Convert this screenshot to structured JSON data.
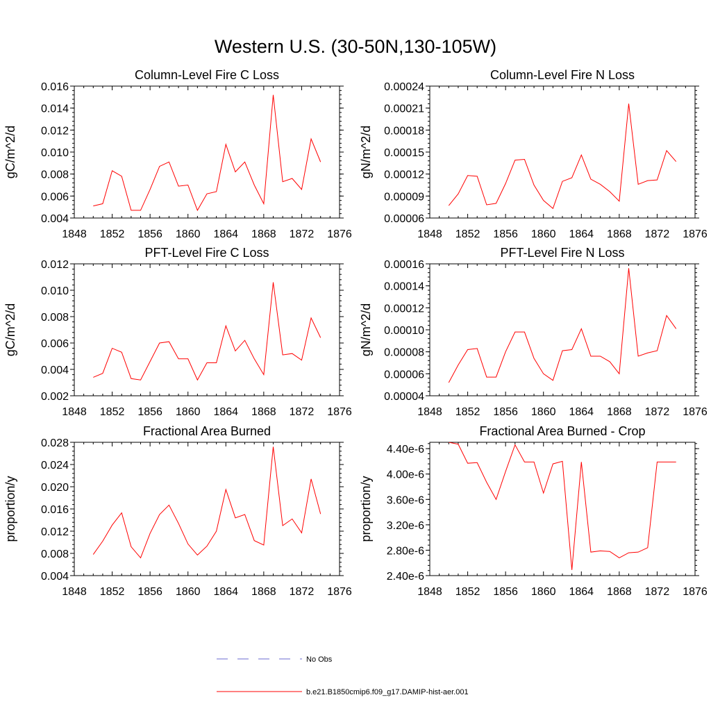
{
  "title": "Western U.S. (30-50N,130-105W)",
  "colors": {
    "model": "#ff0000",
    "obs": "#6a6ad0",
    "axis": "#000000"
  },
  "legend": [
    {
      "label": "No Obs",
      "style": "dashed",
      "color": "#6a6ad0"
    },
    {
      "label": "b.e21.B1850cmip6.f09_g17.DAMIP-hist-aer.001",
      "style": "solid",
      "color": "#ff0000"
    }
  ],
  "chart_data": [
    {
      "type": "line",
      "title": "Column-Level Fire C Loss",
      "ylabel": "gC/m^2/d",
      "xlim": [
        1848,
        1876
      ],
      "ylim": [
        0.004,
        0.016
      ],
      "xticks": [
        "1848",
        "1852",
        "1856",
        "1860",
        "1864",
        "1868",
        "1872",
        "1876"
      ],
      "yticks": [
        "0.004",
        "0.006",
        "0.008",
        "0.010",
        "0.012",
        "0.014",
        "0.016"
      ],
      "x": [
        1850,
        1851,
        1852,
        1853,
        1854,
        1855,
        1856,
        1857,
        1858,
        1859,
        1860,
        1861,
        1862,
        1863,
        1864,
        1865,
        1866,
        1867,
        1868,
        1869,
        1870,
        1871,
        1872,
        1873,
        1874
      ],
      "series": [
        {
          "values": [
            0.0051,
            0.0053,
            0.0083,
            0.0078,
            0.0047,
            0.0047,
            0.0066,
            0.0087,
            0.0091,
            0.0069,
            0.007,
            0.0047,
            0.0062,
            0.0064,
            0.0107,
            0.0082,
            0.0091,
            0.007,
            0.0053,
            0.0152,
            0.0073,
            0.0076,
            0.0066,
            0.0112,
            0.0091
          ]
        }
      ]
    },
    {
      "type": "line",
      "title": "Column-Level Fire N Loss",
      "ylabel": "gN/m^2/d",
      "xlim": [
        1848,
        1876
      ],
      "ylim": [
        6e-05,
        0.00024
      ],
      "xticks": [
        "1848",
        "1852",
        "1856",
        "1860",
        "1864",
        "1868",
        "1872",
        "1876"
      ],
      "yticks": [
        "0.00006",
        "0.00009",
        "0.00012",
        "0.00015",
        "0.00018",
        "0.00021",
        "0.00024"
      ],
      "x": [
        1850,
        1851,
        1852,
        1853,
        1854,
        1855,
        1856,
        1857,
        1858,
        1859,
        1860,
        1861,
        1862,
        1863,
        1864,
        1865,
        1866,
        1867,
        1868,
        1869,
        1870,
        1871,
        1872,
        1873,
        1874
      ],
      "series": [
        {
          "values": [
            7.7e-05,
            9.3e-05,
            0.000118,
            0.000117,
            7.8e-05,
            8e-05,
            0.000107,
            0.000139,
            0.00014,
            0.000105,
            8.4e-05,
            7.3e-05,
            0.00011,
            0.000115,
            0.000146,
            0.000113,
            0.000106,
            9.6e-05,
            8.3e-05,
            0.000216,
            0.000106,
            0.000111,
            0.000112,
            0.000152,
            0.000137
          ]
        }
      ]
    },
    {
      "type": "line",
      "title": "PFT-Level Fire C Loss",
      "ylabel": "gC/m^2/d",
      "xlim": [
        1848,
        1876
      ],
      "ylim": [
        0.002,
        0.012
      ],
      "xticks": [
        "1848",
        "1852",
        "1856",
        "1860",
        "1864",
        "1868",
        "1872",
        "1876"
      ],
      "yticks": [
        "0.002",
        "0.004",
        "0.006",
        "0.008",
        "0.010",
        "0.012"
      ],
      "x": [
        1850,
        1851,
        1852,
        1853,
        1854,
        1855,
        1856,
        1857,
        1858,
        1859,
        1860,
        1861,
        1862,
        1863,
        1864,
        1865,
        1866,
        1867,
        1868,
        1869,
        1870,
        1871,
        1872,
        1873,
        1874
      ],
      "series": [
        {
          "values": [
            0.0034,
            0.0037,
            0.0056,
            0.0053,
            0.0033,
            0.0032,
            0.0046,
            0.006,
            0.0061,
            0.0048,
            0.0048,
            0.0032,
            0.0045,
            0.0045,
            0.0073,
            0.0054,
            0.0062,
            0.0048,
            0.0036,
            0.0106,
            0.0051,
            0.0052,
            0.0047,
            0.0079,
            0.0064
          ]
        }
      ]
    },
    {
      "type": "line",
      "title": "PFT-Level Fire N Loss",
      "ylabel": "gN/m^2/d",
      "xlim": [
        1848,
        1876
      ],
      "ylim": [
        4e-05,
        0.00016
      ],
      "xticks": [
        "1848",
        "1852",
        "1856",
        "1860",
        "1864",
        "1868",
        "1872",
        "1876"
      ],
      "yticks": [
        "0.00004",
        "0.00006",
        "0.00008",
        "0.00010",
        "0.00012",
        "0.00014",
        "0.00016"
      ],
      "x": [
        1850,
        1851,
        1852,
        1853,
        1854,
        1855,
        1856,
        1857,
        1858,
        1859,
        1860,
        1861,
        1862,
        1863,
        1864,
        1865,
        1866,
        1867,
        1868,
        1869,
        1870,
        1871,
        1872,
        1873,
        1874
      ],
      "series": [
        {
          "values": [
            5.2e-05,
            6.8e-05,
            8.2e-05,
            8.3e-05,
            5.7e-05,
            5.7e-05,
            8e-05,
            9.8e-05,
            9.8e-05,
            7.4e-05,
            6e-05,
            5.4e-05,
            8.1e-05,
            8.2e-05,
            0.000101,
            7.6e-05,
            7.6e-05,
            7.1e-05,
            6e-05,
            0.000156,
            7.6e-05,
            7.9e-05,
            8.1e-05,
            0.000113,
            0.000101
          ]
        }
      ]
    },
    {
      "type": "line",
      "title": "Fractional Area Burned",
      "ylabel": "proportion/y",
      "xlim": [
        1848,
        1876
      ],
      "ylim": [
        0.004,
        0.028
      ],
      "xticks": [
        "1848",
        "1852",
        "1856",
        "1860",
        "1864",
        "1868",
        "1872",
        "1876"
      ],
      "yticks": [
        "0.004",
        "0.008",
        "0.012",
        "0.016",
        "0.020",
        "0.024",
        "0.028"
      ],
      "x": [
        1850,
        1851,
        1852,
        1853,
        1854,
        1855,
        1856,
        1857,
        1858,
        1859,
        1860,
        1861,
        1862,
        1863,
        1864,
        1865,
        1866,
        1867,
        1868,
        1869,
        1870,
        1871,
        1872,
        1873,
        1874
      ],
      "series": [
        {
          "values": [
            0.0078,
            0.0102,
            0.0131,
            0.0153,
            0.0092,
            0.0072,
            0.0116,
            0.015,
            0.0167,
            0.0134,
            0.0097,
            0.0077,
            0.0093,
            0.012,
            0.0195,
            0.0144,
            0.015,
            0.0103,
            0.0095,
            0.0272,
            0.013,
            0.0142,
            0.0117,
            0.0214,
            0.0151
          ]
        }
      ]
    },
    {
      "type": "line",
      "title": "Fractional Area Burned - Crop",
      "ylabel": "proportion/y",
      "xlim": [
        1848,
        1876
      ],
      "ylim": [
        2.4e-06,
        4.5e-06
      ],
      "xticks": [
        "1848",
        "1852",
        "1856",
        "1860",
        "1864",
        "1868",
        "1872",
        "1876"
      ],
      "yticks": [
        "2.40e-6",
        "2.80e-6",
        "3.20e-6",
        "3.60e-6",
        "4.00e-6",
        "4.40e-6"
      ],
      "x": [
        1850,
        1851,
        1852,
        1853,
        1854,
        1855,
        1856,
        1857,
        1858,
        1859,
        1860,
        1861,
        1862,
        1863,
        1864,
        1865,
        1866,
        1867,
        1868,
        1869,
        1870,
        1871,
        1872,
        1873,
        1874
      ],
      "series": [
        {
          "values": [
            4.5e-06,
            4.47e-06,
            4.17e-06,
            4.18e-06,
            3.87e-06,
            3.6e-06,
            4.04e-06,
            4.46e-06,
            4.19e-06,
            4.19e-06,
            3.7e-06,
            4.16e-06,
            4.2e-06,
            2.49e-06,
            4.19e-06,
            2.77e-06,
            2.79e-06,
            2.78e-06,
            2.68e-06,
            2.76e-06,
            2.77e-06,
            2.84e-06,
            4.19e-06,
            4.19e-06,
            4.19e-06
          ]
        }
      ]
    }
  ]
}
